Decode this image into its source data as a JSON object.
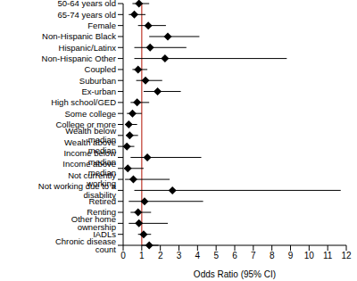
{
  "chart_data": {
    "type": "forest",
    "xlabel": "Odds Ratio (95% CI)",
    "categories": [
      "50-64 years old",
      "65-74 years old",
      "Female",
      "Non-Hispanic Black",
      "Hispanic/Latinx",
      "Non-Hispanic Other",
      "Coupled",
      "Suburban",
      "Ex-urban",
      "High school/GED",
      "Some college",
      "College or more",
      "Wealth below median",
      "Wealth above median",
      "Income below median",
      "Income above median",
      "Not currently working",
      "Not working due to a disability",
      "Retired",
      "Renting",
      "Other home ownership",
      "IADLs",
      "Chronic disease count"
    ],
    "values": [
      0.85,
      0.6,
      1.35,
      2.4,
      1.45,
      2.25,
      0.8,
      1.2,
      1.85,
      0.75,
      0.5,
      0.3,
      0.35,
      0.2,
      1.3,
      0.25,
      0.55,
      2.65,
      1.15,
      0.8,
      0.85,
      1.1,
      1.4
    ],
    "ci_lower": [
      0.5,
      0.3,
      0.8,
      1.4,
      0.6,
      0.6,
      0.5,
      0.7,
      1.1,
      0.4,
      0.2,
      0.1,
      0.15,
      0.05,
      0.4,
      0.05,
      0.1,
      0.6,
      0.3,
      0.4,
      0.3,
      0.8,
      1.0
    ],
    "ci_upper": [
      1.4,
      1.2,
      2.3,
      4.1,
      3.4,
      8.8,
      1.3,
      2.1,
      3.1,
      1.4,
      1.0,
      0.75,
      0.8,
      0.6,
      4.2,
      1.1,
      2.5,
      11.7,
      4.3,
      1.5,
      2.4,
      1.5,
      1.9
    ],
    "reference_line": 1,
    "xlim": [
      0,
      12
    ],
    "xticks": [
      0,
      1,
      2,
      3,
      4,
      5,
      6,
      7,
      8,
      9,
      10,
      11,
      12
    ],
    "color": "#000000",
    "marker": "diamond",
    "grid": false
  }
}
